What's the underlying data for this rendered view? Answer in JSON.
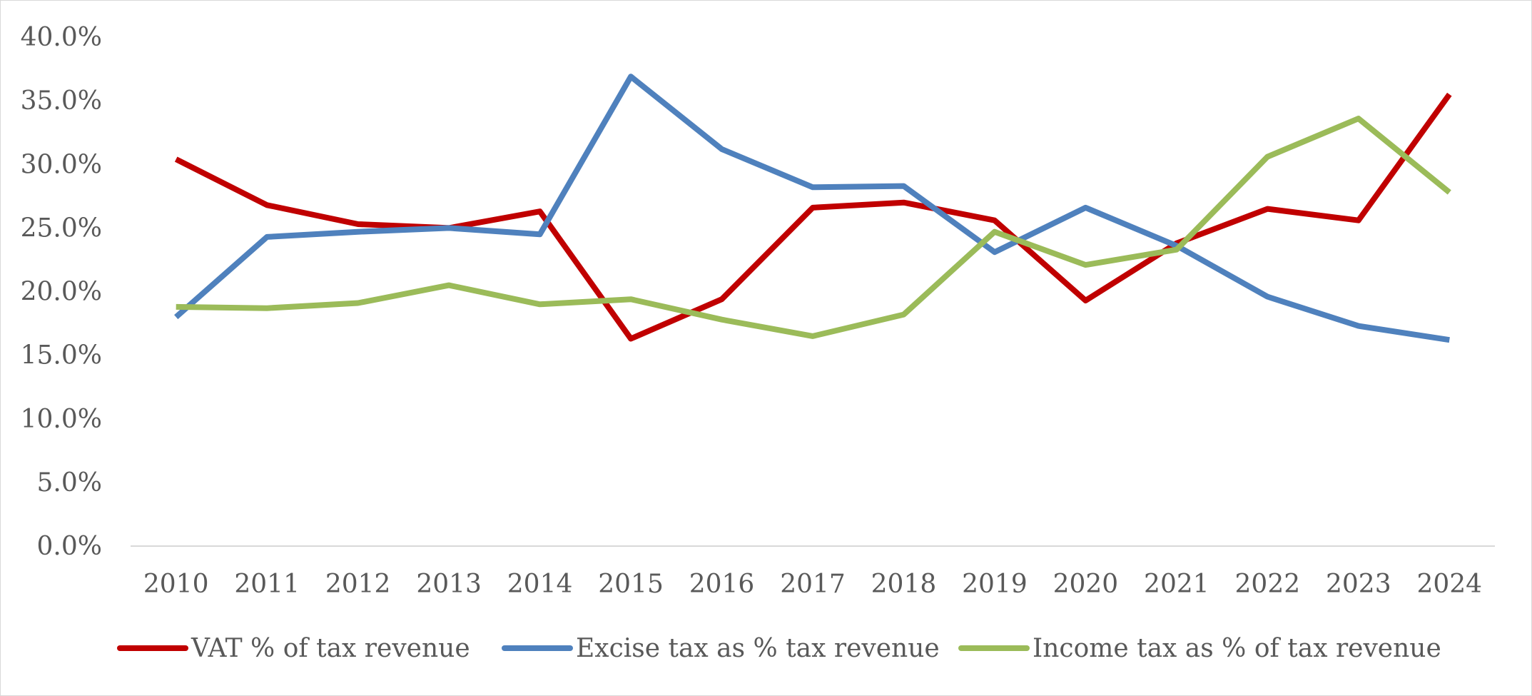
{
  "chart_data": {
    "type": "line",
    "title": "",
    "xlabel": "",
    "ylabel": "",
    "x": [
      "2010",
      "2011",
      "2012",
      "2013",
      "2014",
      "2015",
      "2016",
      "2017",
      "2018",
      "2019",
      "2020",
      "2021",
      "2022",
      "2023",
      "2024"
    ],
    "ylim": [
      0,
      40
    ],
    "y_ticks": [
      "0.0%",
      "5.0%",
      "10.0%",
      "15.0%",
      "20.0%",
      "25.0%",
      "30.0%",
      "35.0%",
      "40.0%"
    ],
    "y_unit": "%",
    "grid": false,
    "legend_position": "bottom",
    "series": [
      {
        "name": "VAT % of tax revenue",
        "color": "#C00000",
        "values": [
          30.4,
          26.8,
          25.3,
          25.0,
          26.3,
          16.3,
          19.4,
          26.6,
          27.0,
          25.6,
          19.3,
          23.8,
          26.5,
          25.6,
          35.5
        ]
      },
      {
        "name": "Excise tax as % tax revenue",
        "color": "#4F81BD",
        "values": [
          18.0,
          24.3,
          24.7,
          25.0,
          24.5,
          36.9,
          31.2,
          28.2,
          28.3,
          23.1,
          26.6,
          23.6,
          19.6,
          17.3,
          16.2
        ]
      },
      {
        "name": "Income tax as % of tax revenue",
        "color": "#9BBB59",
        "values": [
          18.8,
          18.7,
          19.1,
          20.5,
          19.0,
          19.4,
          17.8,
          16.5,
          18.2,
          24.7,
          22.1,
          23.3,
          30.6,
          33.6,
          27.8
        ]
      }
    ]
  }
}
